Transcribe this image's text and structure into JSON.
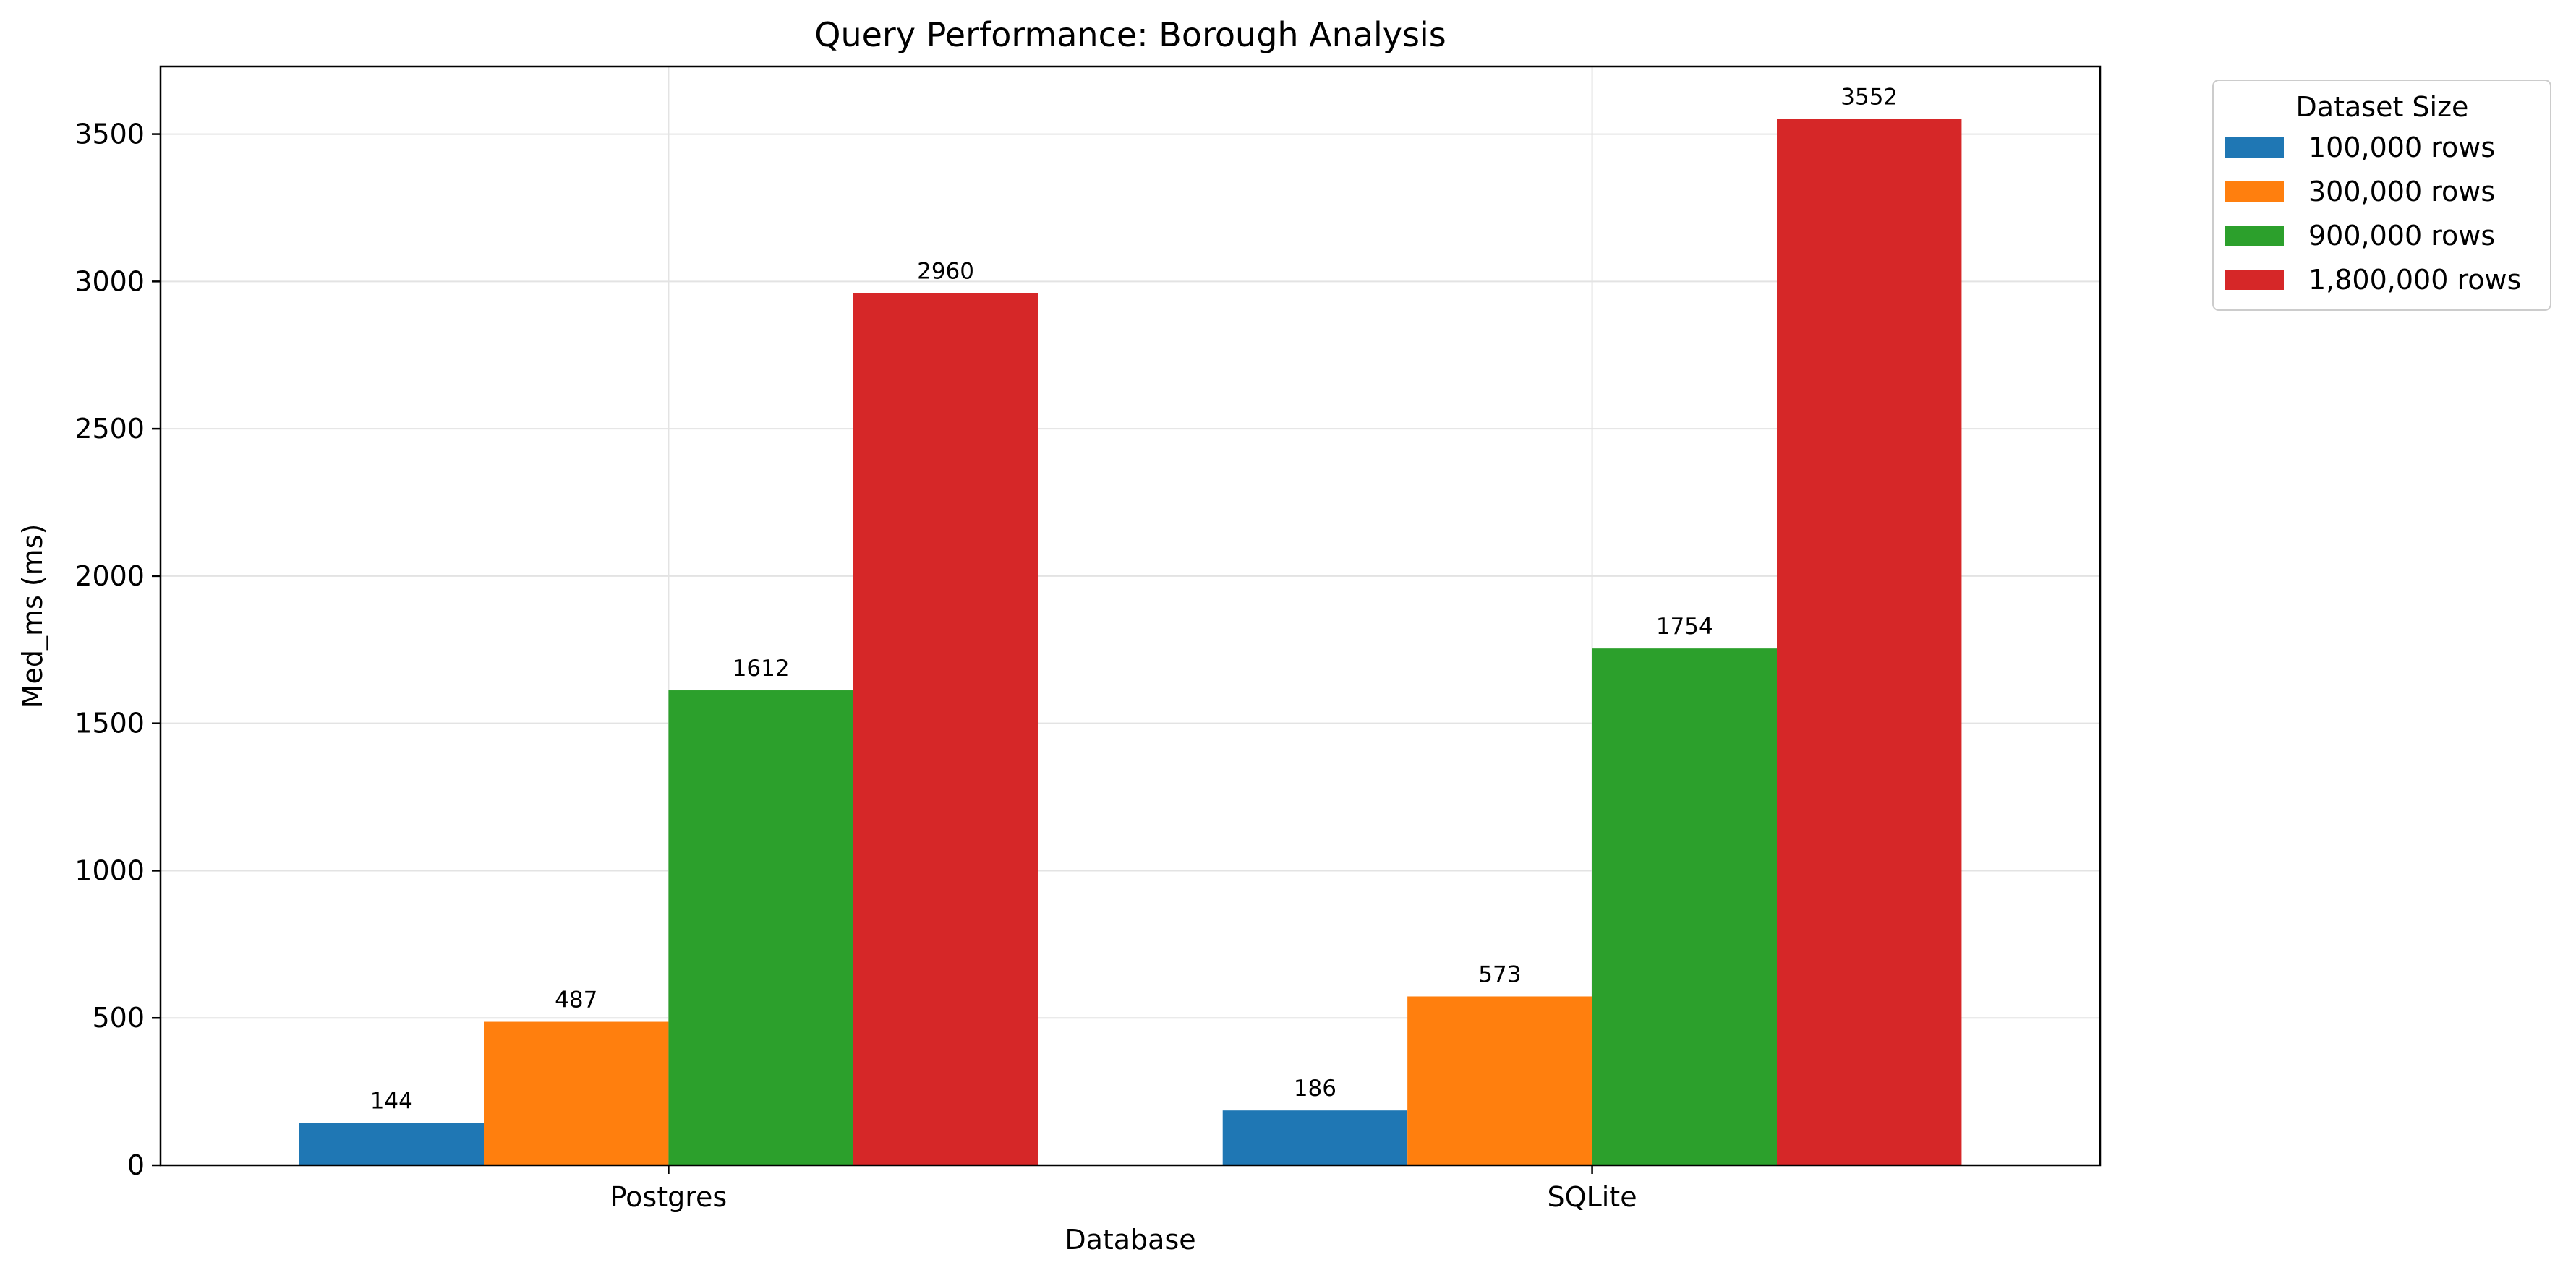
{
  "chart_data": {
    "type": "bar",
    "title": "Query Performance: Borough Analysis",
    "xlabel": "Database",
    "ylabel": "Med_ms (ms)",
    "categories": [
      "Postgres",
      "SQLite"
    ],
    "series": [
      {
        "name": "100,000 rows",
        "color": "#1f77b4",
        "values": [
          144,
          186
        ]
      },
      {
        "name": "300,000 rows",
        "color": "#ff7f0e",
        "values": [
          487,
          573
        ]
      },
      {
        "name": "900,000 rows",
        "color": "#2ca02c",
        "values": [
          1612,
          1754
        ]
      },
      {
        "name": "1,800,000 rows",
        "color": "#d62728",
        "values": [
          2960,
          3552
        ]
      }
    ],
    "ylim": [
      0,
      3729.6
    ],
    "yticks": [
      0,
      500,
      1000,
      1500,
      2000,
      2500,
      3000,
      3500
    ],
    "grid": true,
    "legend": {
      "title": "Dataset Size",
      "placement": "outside top-right"
    },
    "data_labels": true
  }
}
